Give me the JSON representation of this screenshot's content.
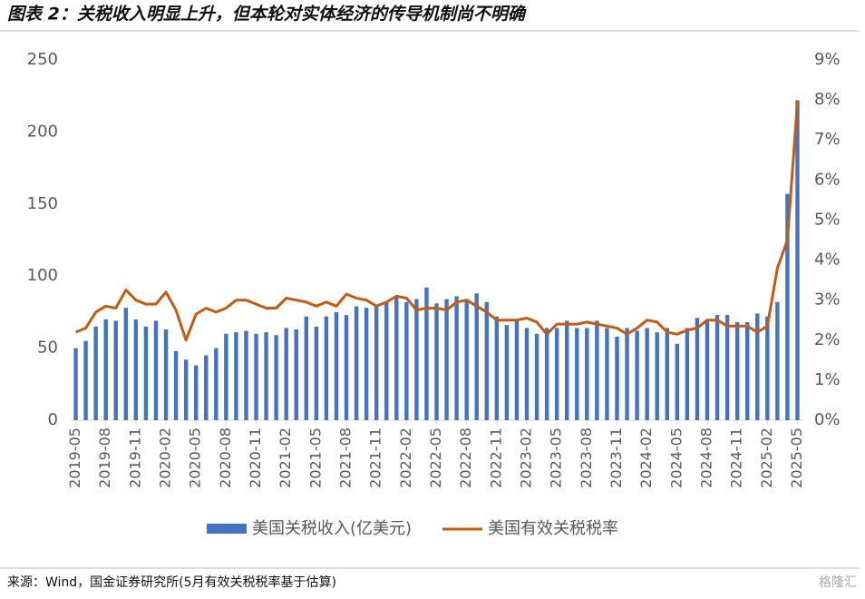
{
  "chart_data": {
    "type": "bar-line",
    "title": "图表 2：关税收入明显上升，但本轮对实体经济的传导机制尚不明确",
    "source": "来源：Wind，国金证券研究所(5月有效关税税率基于估算)",
    "watermark": "格隆汇",
    "categories": [
      "2019-05",
      null,
      null,
      "2019-08",
      null,
      null,
      "2019-11",
      null,
      null,
      "2020-02",
      null,
      null,
      "2020-05",
      null,
      null,
      "2020-08",
      null,
      null,
      "2020-11",
      null,
      null,
      "2021-02",
      null,
      null,
      "2021-05",
      null,
      null,
      "2021-08",
      null,
      null,
      "2021-11",
      null,
      null,
      "2022-02",
      null,
      null,
      "2022-05",
      null,
      null,
      "2022-08",
      null,
      null,
      "2022-11",
      null,
      null,
      "2023-02",
      null,
      null,
      "2023-05",
      null,
      null,
      "2023-08",
      null,
      null,
      "2023-11",
      null,
      null,
      "2024-02",
      null,
      null,
      "2024-05",
      null,
      null,
      "2024-08",
      null,
      null,
      "2024-11",
      null,
      null,
      "2025-02",
      null,
      null,
      "2025-05"
    ],
    "series": [
      {
        "name": "美国关税收入(亿美元)",
        "type": "bar",
        "color": "#4472c4",
        "axis": "y",
        "values": [
          50,
          55,
          65,
          70,
          69,
          78,
          70,
          65,
          69,
          63,
          48,
          42,
          38,
          45,
          50,
          60,
          61,
          62,
          60,
          61,
          59,
          64,
          63,
          72,
          65,
          72,
          75,
          73,
          79,
          78,
          79,
          82,
          86,
          82,
          84,
          92,
          81,
          84,
          86,
          84,
          88,
          82,
          72,
          66,
          69,
          64,
          60,
          64,
          64,
          69,
          64,
          64,
          69,
          64,
          58,
          64,
          62,
          64,
          61,
          64,
          53,
          64,
          71,
          70,
          73,
          73,
          68,
          68,
          74,
          72,
          82,
          157,
          222
        ]
      },
      {
        "name": "美国有效关税税率",
        "type": "line",
        "color": "#c55a11",
        "axis": "y2",
        "values": [
          2.2,
          2.3,
          2.7,
          2.85,
          2.8,
          3.25,
          3.0,
          2.9,
          2.9,
          3.2,
          2.75,
          2.0,
          2.65,
          2.8,
          2.7,
          2.8,
          3.0,
          3.0,
          2.9,
          2.8,
          2.8,
          3.05,
          3.0,
          2.95,
          2.85,
          2.95,
          2.85,
          3.15,
          3.05,
          3.0,
          2.85,
          2.95,
          3.1,
          3.05,
          2.75,
          2.8,
          2.8,
          2.75,
          2.95,
          3.0,
          2.85,
          2.7,
          2.5,
          2.5,
          2.5,
          2.55,
          2.45,
          2.15,
          2.4,
          2.4,
          2.4,
          2.45,
          2.4,
          2.35,
          2.3,
          2.15,
          2.3,
          2.5,
          2.45,
          2.2,
          2.15,
          2.25,
          2.3,
          2.5,
          2.5,
          2.35,
          2.35,
          2.35,
          2.2,
          2.35,
          3.8,
          4.5,
          7.95
        ]
      }
    ],
    "ylim": [
      0,
      250
    ],
    "yticks": [
      0,
      50,
      100,
      150,
      200,
      250
    ],
    "y2lim": [
      0,
      9
    ],
    "y2ticks": [
      {
        "value": 0,
        "label": "0%"
      },
      {
        "value": 1,
        "label": "1%"
      },
      {
        "value": 2,
        "label": "2%"
      },
      {
        "value": 3,
        "label": "3%"
      },
      {
        "value": 4,
        "label": "4%"
      },
      {
        "value": 5,
        "label": "5%"
      },
      {
        "value": 6,
        "label": "6%"
      },
      {
        "value": 7,
        "label": "7%"
      },
      {
        "value": 8,
        "label": "8%"
      },
      {
        "value": 9,
        "label": "9%"
      }
    ],
    "legend": "bottom"
  }
}
